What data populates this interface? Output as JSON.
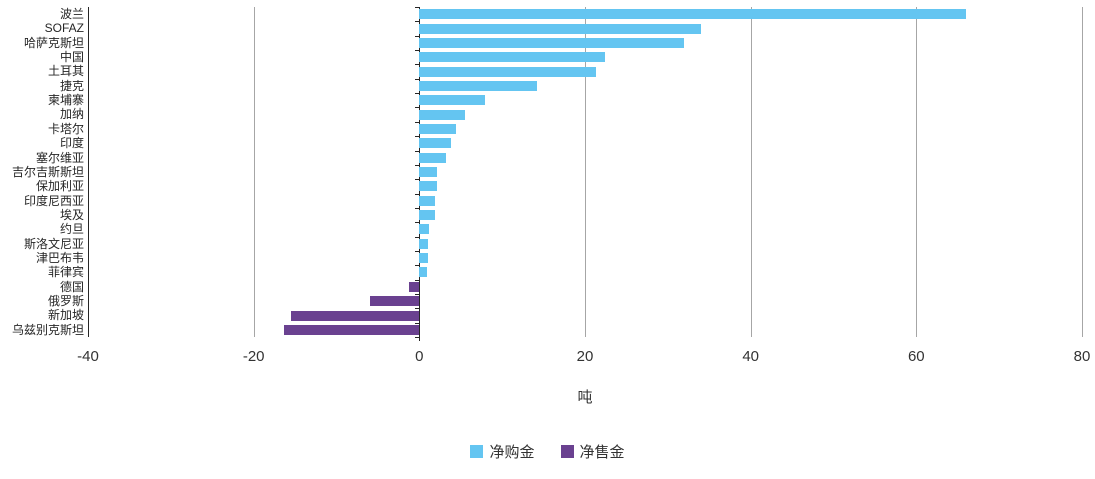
{
  "chart_data": {
    "type": "bar",
    "orientation": "horizontal",
    "xlabel": "吨",
    "xlim": [
      -40,
      80
    ],
    "xticks": [
      -40,
      -20,
      0,
      20,
      40,
      60,
      80
    ],
    "grid": "vertical-lines-on",
    "legend_position": "bottom-center",
    "legend": [
      {
        "label": "净购金",
        "color": "#64C5F1"
      },
      {
        "label": "净售金",
        "color": "#6A4190"
      }
    ],
    "rows": [
      {
        "label": "波兰",
        "value": 66,
        "series": "净购金"
      },
      {
        "label": "SOFAZ",
        "value": 34,
        "series": "净购金"
      },
      {
        "label": "哈萨克斯坦",
        "value": 32,
        "series": "净购金"
      },
      {
        "label": "中国",
        "value": 22.4,
        "series": "净购金"
      },
      {
        "label": "土耳其",
        "value": 21.3,
        "series": "净购金"
      },
      {
        "label": "捷克",
        "value": 14.2,
        "series": "净购金"
      },
      {
        "label": "柬埔寨",
        "value": 7.9,
        "series": "净购金"
      },
      {
        "label": "加纳",
        "value": 5.5,
        "series": "净购金"
      },
      {
        "label": "卡塔尔",
        "value": 4.4,
        "series": "净购金"
      },
      {
        "label": "印度",
        "value": 3.8,
        "series": "净购金"
      },
      {
        "label": "塞尔维亚",
        "value": 3.2,
        "series": "净购金"
      },
      {
        "label": "吉尔吉斯斯坦",
        "value": 2.2,
        "series": "净购金"
      },
      {
        "label": "保加利亚",
        "value": 2.2,
        "series": "净购金"
      },
      {
        "label": "印度尼西亚",
        "value": 1.9,
        "series": "净购金"
      },
      {
        "label": "埃及",
        "value": 1.9,
        "series": "净购金"
      },
      {
        "label": "约旦",
        "value": 1.2,
        "series": "净购金"
      },
      {
        "label": "斯洛文尼亚",
        "value": 1.1,
        "series": "净购金"
      },
      {
        "label": "津巴布韦",
        "value": 1.0,
        "series": "净购金"
      },
      {
        "label": "菲律宾",
        "value": 0.9,
        "series": "净购金"
      },
      {
        "label": "德国",
        "value": -1.2,
        "series": "净售金"
      },
      {
        "label": "俄罗斯",
        "value": -6,
        "series": "净售金"
      },
      {
        "label": "新加坡",
        "value": -15.5,
        "series": "净售金"
      },
      {
        "label": "乌兹别克斯坦",
        "value": -16.3,
        "series": "净售金"
      }
    ],
    "colors": {
      "bar_positive": "#64C5F1",
      "bar_negative": "#6A4190",
      "gridline": "#A6A6A6",
      "axis": "#262626",
      "text": "#333333"
    }
  }
}
